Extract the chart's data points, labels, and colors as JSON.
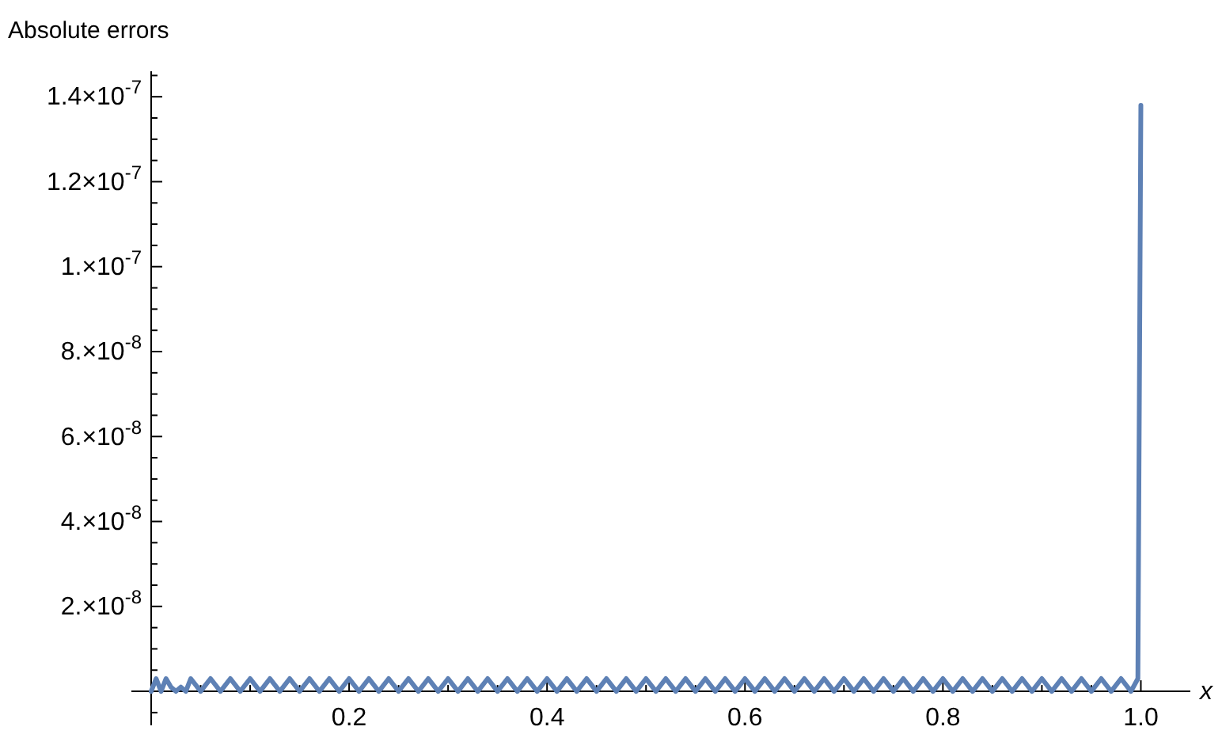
{
  "chart_data": {
    "type": "line",
    "ylabel": "Absolute errors",
    "xlabel": "x",
    "xlim": [
      -0.02,
      1.05
    ],
    "ylim": [
      -8e-09,
      1.46e-07
    ],
    "xticks": [
      {
        "value": 0.05,
        "label": null
      },
      {
        "value": 0.1,
        "label": null
      },
      {
        "value": 0.15,
        "label": null
      },
      0.2,
      {
        "value": 0.25,
        "label": null
      },
      {
        "value": 0.3,
        "label": null
      },
      {
        "value": 0.35,
        "label": null
      },
      0.4,
      {
        "value": 0.45,
        "label": null
      },
      {
        "value": 0.5,
        "label": null
      },
      {
        "value": 0.55,
        "label": null
      },
      0.6,
      {
        "value": 0.65,
        "label": null
      },
      {
        "value": 0.7,
        "label": null
      },
      {
        "value": 0.75,
        "label": null
      },
      0.8,
      {
        "value": 0.85,
        "label": null
      },
      {
        "value": 0.9,
        "label": null
      },
      {
        "value": 0.95,
        "label": null
      },
      {
        "value": 1,
        "label": "1.0"
      }
    ],
    "yticks": [
      {
        "value": -5e-09,
        "label": null
      },
      {
        "value": 5e-09,
        "label": null
      },
      {
        "value": 1e-08,
        "label": null
      },
      {
        "value": 1.5e-08,
        "label": null
      },
      {
        "value": 2e-08,
        "label": "2.×10$^{-8}$"
      },
      {
        "value": 2.5e-08,
        "label": null
      },
      {
        "value": 3e-08,
        "label": null
      },
      {
        "value": 3.5e-08,
        "label": null
      },
      {
        "value": 4e-08,
        "label": "4.×10$^{-8}$"
      },
      {
        "value": 4.5e-08,
        "label": null
      },
      {
        "value": 5e-08,
        "label": null
      },
      {
        "value": 5.5e-08,
        "label": null
      },
      {
        "value": 6e-08,
        "label": "6.×10$^{-8}$"
      },
      {
        "value": 6.5e-08,
        "label": null
      },
      {
        "value": 7e-08,
        "label": null
      },
      {
        "value": 7.5e-08,
        "label": null
      },
      {
        "value": 8e-08,
        "label": "8.×10$^{-8}$"
      },
      {
        "value": 8.5e-08,
        "label": null
      },
      {
        "value": 9e-08,
        "label": null
      },
      {
        "value": 9.5e-08,
        "label": null
      },
      {
        "value": 1e-07,
        "label": "1.×10$^{-7}$"
      },
      {
        "value": 1.05e-07,
        "label": null
      },
      {
        "value": 1.1e-07,
        "label": null
      },
      {
        "value": 1.15e-07,
        "label": null
      },
      {
        "value": 1.2e-07,
        "label": "1.2×10$^{-7}$"
      },
      {
        "value": 1.25e-07,
        "label": null
      },
      {
        "value": 1.3e-07,
        "label": null
      },
      {
        "value": 1.35e-07,
        "label": null
      },
      {
        "value": 1.4e-07,
        "label": "1.4×10$^{-7}$"
      },
      {
        "value": 1.45e-07,
        "label": null
      }
    ],
    "series": [
      {
        "color": "#5e81b5",
        "x": [
          0,
          0.005,
          0.01,
          0.015,
          0.02,
          0.025,
          0.03,
          0.035,
          0.04,
          0.05,
          0.06,
          0.07,
          0.08,
          0.09,
          0.1,
          0.11,
          0.12,
          0.13,
          0.14,
          0.15,
          0.16,
          0.17,
          0.18,
          0.19,
          0.2,
          0.21,
          0.22,
          0.23,
          0.24,
          0.25,
          0.26,
          0.27,
          0.28,
          0.29,
          0.3,
          0.31,
          0.32,
          0.33,
          0.34,
          0.35,
          0.36,
          0.37,
          0.38,
          0.39,
          0.4,
          0.41,
          0.42,
          0.43,
          0.44,
          0.45,
          0.46,
          0.47,
          0.48,
          0.49,
          0.5,
          0.51,
          0.52,
          0.53,
          0.54,
          0.55,
          0.56,
          0.57,
          0.58,
          0.59,
          0.6,
          0.61,
          0.62,
          0.63,
          0.64,
          0.65,
          0.66,
          0.67,
          0.68,
          0.69,
          0.7,
          0.71,
          0.72,
          0.73,
          0.74,
          0.75,
          0.76,
          0.77,
          0.78,
          0.79,
          0.8,
          0.81,
          0.82,
          0.83,
          0.84,
          0.85,
          0.86,
          0.87,
          0.88,
          0.89,
          0.9,
          0.91,
          0.92,
          0.93,
          0.94,
          0.95,
          0.96,
          0.97,
          0.98,
          0.99,
          0.997,
          1
        ],
        "values": [
          0,
          3e-09,
          0,
          3e-09,
          1e-09,
          0,
          1e-09,
          0,
          3e-09,
          0,
          3e-09,
          0,
          3e-09,
          0,
          3e-09,
          0,
          3e-09,
          0,
          3e-09,
          0,
          3e-09,
          0,
          3e-09,
          0,
          3e-09,
          0,
          3e-09,
          0,
          3e-09,
          0,
          3e-09,
          0,
          3e-09,
          0,
          3e-09,
          0,
          3e-09,
          0,
          3e-09,
          0,
          3e-09,
          0,
          3e-09,
          0,
          3e-09,
          0,
          3e-09,
          0,
          3e-09,
          0,
          3e-09,
          0,
          3e-09,
          0,
          3e-09,
          0,
          3e-09,
          0,
          3e-09,
          0,
          3e-09,
          0,
          3e-09,
          0,
          3e-09,
          0,
          3e-09,
          0,
          3e-09,
          0,
          3e-09,
          0,
          3e-09,
          0,
          3e-09,
          0,
          3e-09,
          0,
          3e-09,
          0,
          3e-09,
          0,
          3e-09,
          0,
          3e-09,
          0,
          3e-09,
          0,
          3e-09,
          0,
          3e-09,
          0,
          3e-09,
          0,
          3e-09,
          0,
          3e-09,
          0,
          3e-09,
          0,
          3e-09,
          0,
          3e-09,
          0,
          3e-09,
          1.38e-07
        ]
      }
    ]
  }
}
